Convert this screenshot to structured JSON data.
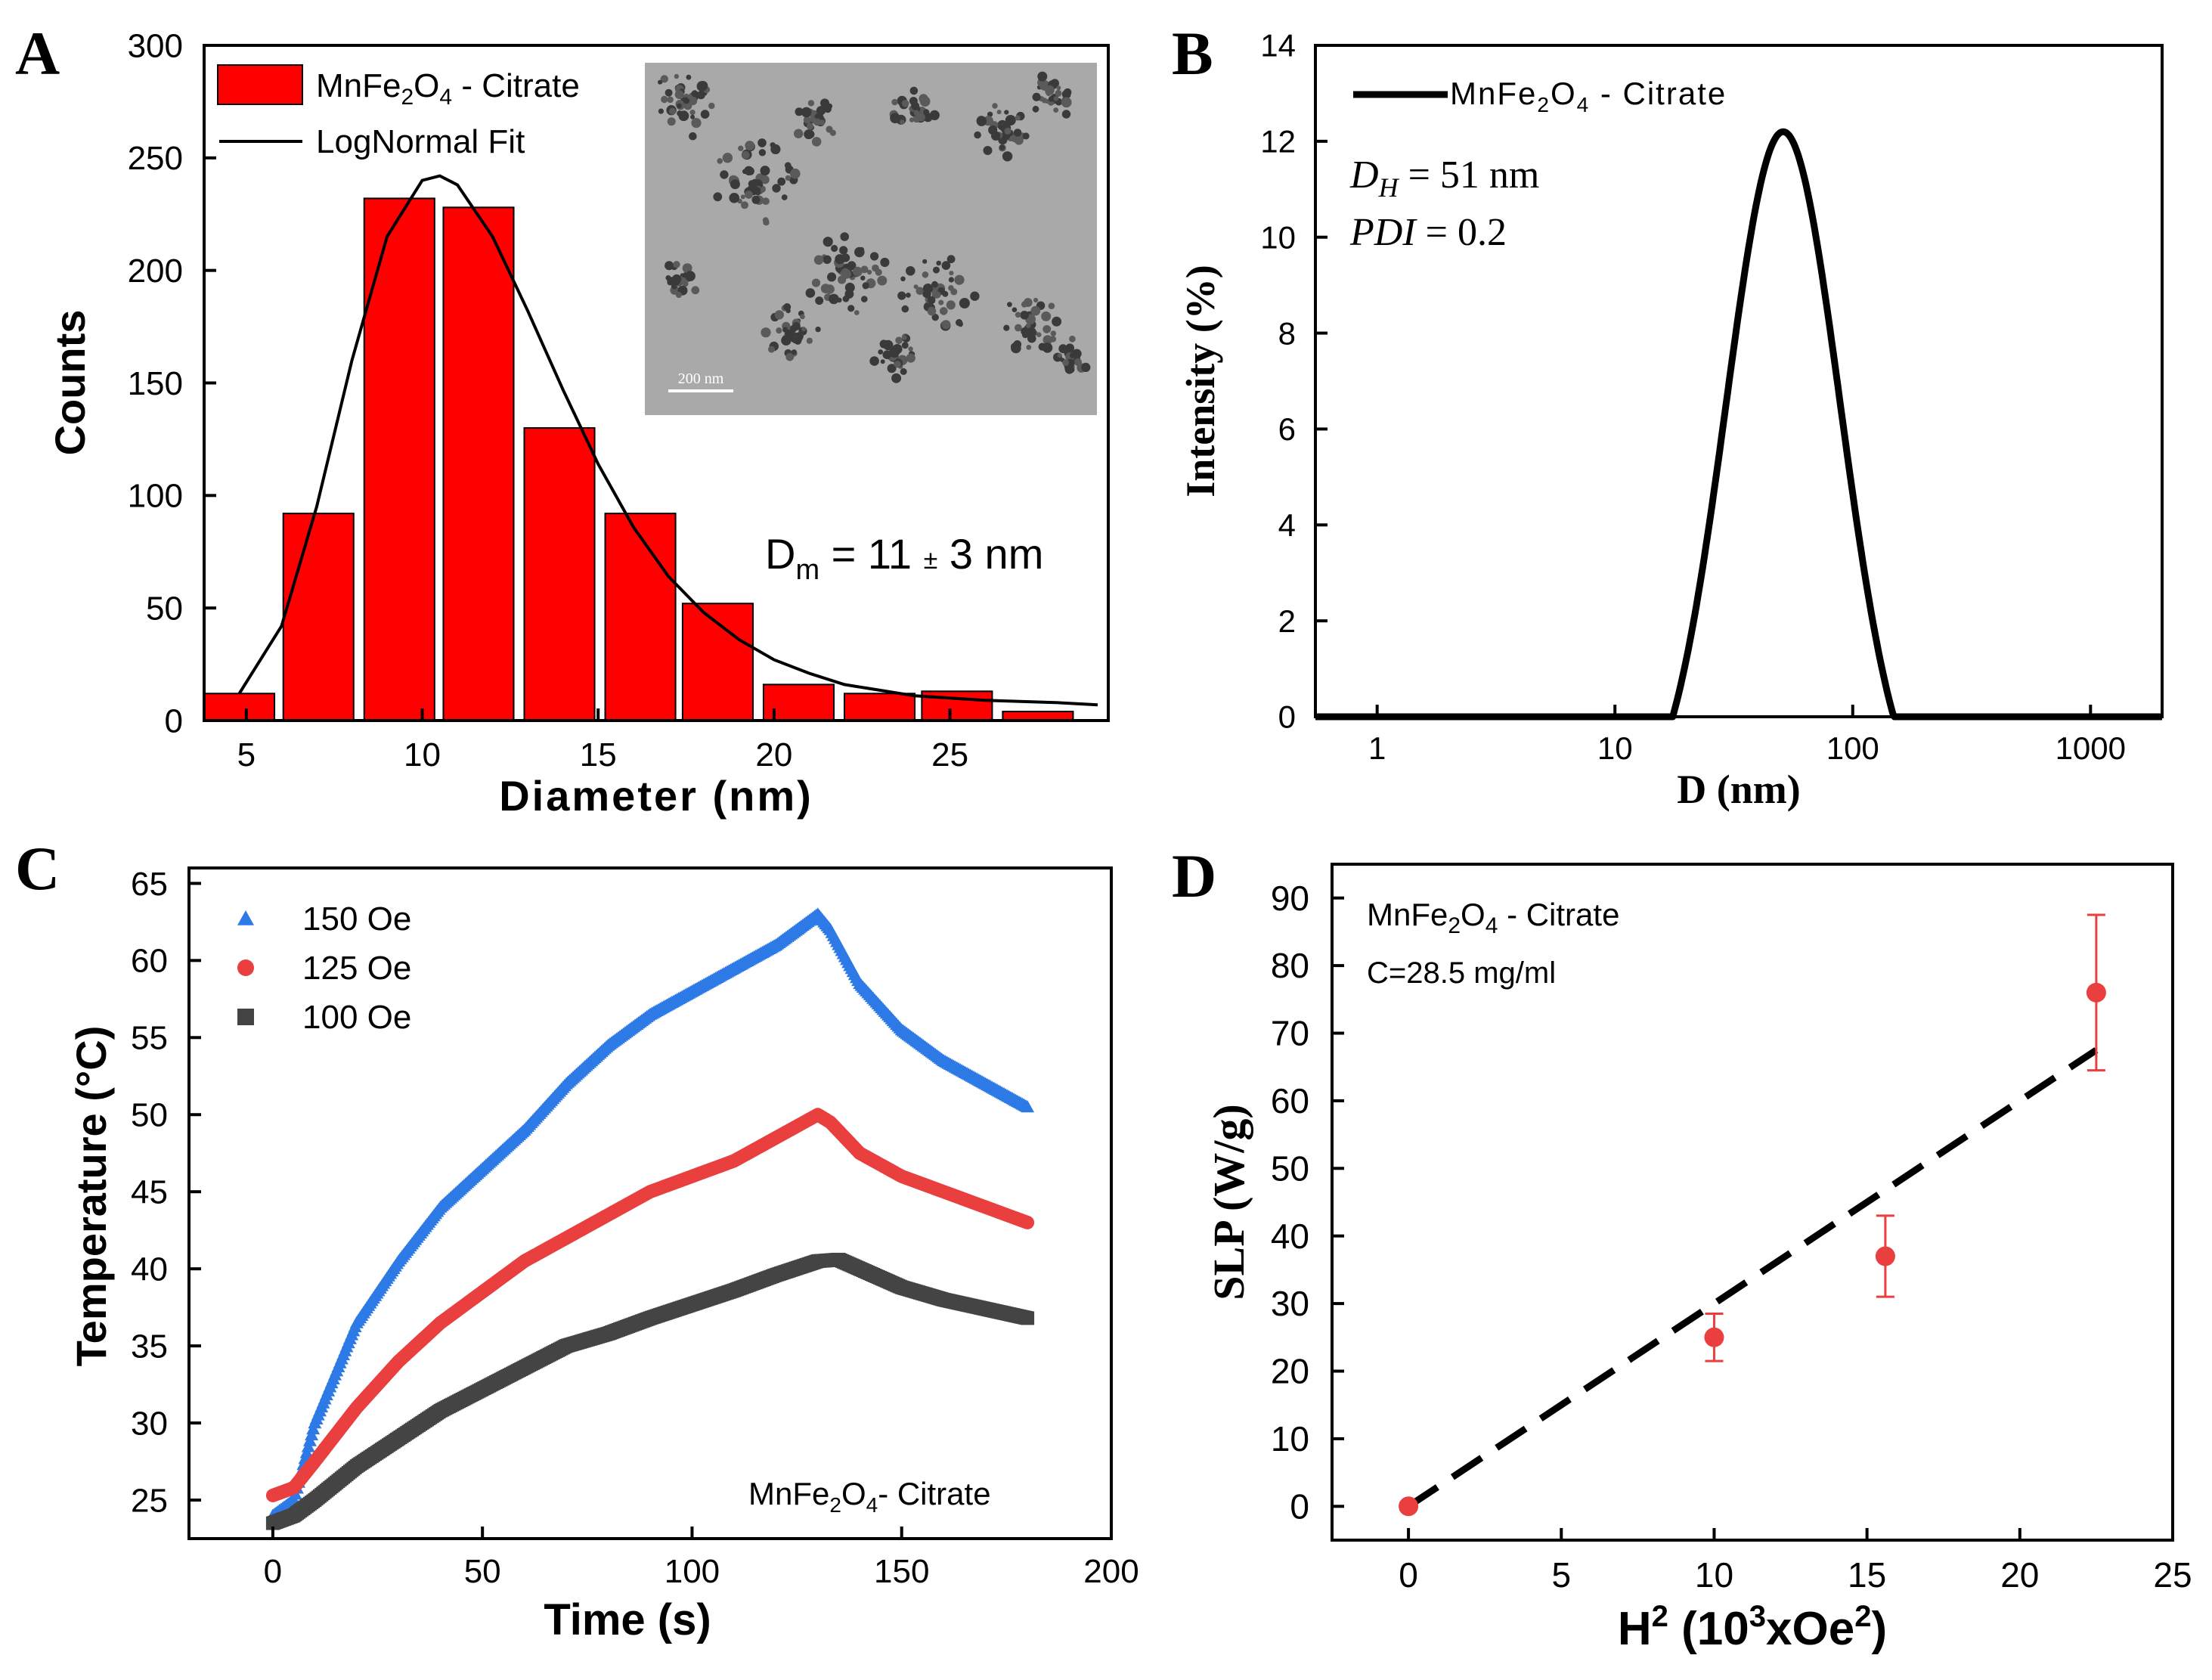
{
  "colors": {
    "bar": "#ff0000",
    "fit": "#000000",
    "dls": "#000000",
    "series150": "#2d7ae6",
    "series125": "#ea3f3f",
    "series100": "#444444",
    "slp_points": "#ea3f3f",
    "slp_fit": "#000000"
  },
  "panels": {
    "A": {
      "letter": "A"
    },
    "B": {
      "letter": "B"
    },
    "C": {
      "letter": "C"
    },
    "D": {
      "letter": "D"
    }
  },
  "chart_data": [
    {
      "id": "A",
      "type": "bar",
      "xlabel": "Diameter (nm)",
      "ylabel": "Counts",
      "xlim": [
        3.8,
        29.5
      ],
      "ylim": [
        0,
        300
      ],
      "xticks": [
        5,
        10,
        15,
        20,
        25
      ],
      "yticks": [
        0,
        50,
        100,
        150,
        200,
        250,
        300
      ],
      "bar_width": 2.0,
      "bars": [
        {
          "x": 4.8,
          "count": 12
        },
        {
          "x": 7.05,
          "count": 92
        },
        {
          "x": 9.35,
          "count": 232
        },
        {
          "x": 11.6,
          "count": 228
        },
        {
          "x": 13.9,
          "count": 130
        },
        {
          "x": 16.2,
          "count": 92
        },
        {
          "x": 18.4,
          "count": 52
        },
        {
          "x": 20.7,
          "count": 16
        },
        {
          "x": 23.0,
          "count": 12
        },
        {
          "x": 25.2,
          "count": 13
        },
        {
          "x": 27.5,
          "count": 4
        }
      ],
      "fit": {
        "x": [
          4.8,
          6,
          7,
          8,
          9,
          10,
          10.5,
          11,
          12,
          13,
          14,
          15,
          16,
          17,
          18,
          19,
          20,
          21,
          22,
          24,
          26,
          28,
          29.2
        ],
        "y": [
          12,
          42,
          95,
          160,
          215,
          240,
          242,
          238,
          215,
          182,
          147,
          114,
          86,
          64,
          48,
          36,
          27,
          21,
          16,
          11,
          9,
          8,
          7
        ]
      },
      "legend": [
        {
          "label": "MnFe",
          "sub1": "2",
          "mid": "O",
          "sub2": "4",
          "tail": " - Citrate",
          "kind": "bar"
        },
        {
          "label": "LogNormal Fit",
          "kind": "line"
        }
      ],
      "annotation": {
        "main": "D",
        "sub": "m",
        "rest": " = 11 ",
        "pm": "±",
        "tail": " 3 nm"
      },
      "inset": {
        "scalebar": "200 nm"
      }
    },
    {
      "id": "B",
      "type": "line",
      "xscale": "log",
      "xlabel": "D (nm)",
      "ylabel": "Intensity (%)",
      "xlim": [
        0.55,
        2000
      ],
      "ylim": [
        0,
        14
      ],
      "xticks": [
        1,
        10,
        100,
        1000
      ],
      "xtick_labels": [
        "1",
        "10",
        "100",
        "1000"
      ],
      "yticks": [
        0,
        2,
        4,
        6,
        8,
        10,
        12,
        14
      ],
      "series": [
        {
          "name": "MnFe2O4 - Citrate",
          "peak_center": 51,
          "peak_height": 12.2,
          "log_sigma": 0.24,
          "start": 17.5,
          "end": 200
        }
      ],
      "legend": [
        {
          "label": "MnFe",
          "sub1": "2",
          "mid": "O",
          "sub2": "4",
          "tail": " - Citrate"
        }
      ],
      "annotations": {
        "dh_main": "D",
        "dh_sub": "H",
        "dh_rest": " = 51 nm",
        "pdi": "PDI",
        "pdi_rest": " = 0.2"
      }
    },
    {
      "id": "C",
      "type": "scatter",
      "xlabel": "Time (s)",
      "ylabel": "Temperature (°C)",
      "xlim": [
        -20,
        200
      ],
      "ylim": [
        22.5,
        66
      ],
      "xticks": [
        0,
        50,
        100,
        150,
        200
      ],
      "yticks": [
        25,
        30,
        35,
        40,
        45,
        50,
        55,
        60,
        65
      ],
      "series": [
        {
          "name": "150 Oe",
          "marker": "triangle",
          "x": [
            0,
            5,
            10,
            20,
            30,
            40,
            50,
            60,
            70,
            80,
            90,
            100,
            110,
            120,
            130,
            133,
            140,
            150,
            160,
            170,
            180
          ],
          "y": [
            24,
            25,
            30,
            36.5,
            40.5,
            44,
            46.5,
            49,
            52,
            54.5,
            56.5,
            58,
            59.5,
            61,
            63,
            62,
            58.5,
            55.5,
            53.5,
            52,
            50.5
          ]
        },
        {
          "name": "125 Oe",
          "marker": "circle",
          "x": [
            0,
            5,
            10,
            20,
            30,
            40,
            50,
            60,
            70,
            80,
            90,
            100,
            110,
            120,
            130,
            133,
            140,
            150,
            160,
            170,
            180
          ],
          "y": [
            25.3,
            25.8,
            27.5,
            31,
            34,
            36.5,
            38.5,
            40.5,
            42,
            43.5,
            45,
            46,
            47,
            48.5,
            50,
            49.5,
            47.5,
            46,
            45,
            44,
            43
          ]
        },
        {
          "name": "100 Oe",
          "marker": "square",
          "x": [
            0,
            5,
            10,
            20,
            30,
            40,
            50,
            60,
            70,
            80,
            90,
            100,
            110,
            120,
            130,
            135,
            140,
            150,
            160,
            170,
            180
          ],
          "y": [
            23.5,
            24,
            25,
            27.2,
            29,
            30.8,
            32.2,
            33.6,
            35,
            35.8,
            36.8,
            37.7,
            38.6,
            39.6,
            40.5,
            40.6,
            40,
            38.8,
            38,
            37.4,
            36.8
          ]
        }
      ],
      "annotation": {
        "main": "MnFe",
        "sub1": "2",
        "mid": "O",
        "sub2": "4",
        "tail": "- Citrate"
      }
    },
    {
      "id": "D",
      "type": "scatter",
      "xlabel": {
        "main": "H",
        "sup1": "2",
        "mid": " (10",
        "sup2": "3",
        "mid2": "xOe",
        "sup3": "2",
        "tail": ")"
      },
      "ylabel": "SLP (W/g)",
      "xlim": [
        -2.5,
        25
      ],
      "ylim": [
        -5,
        95
      ],
      "xticks": [
        0,
        5,
        10,
        15,
        20,
        25
      ],
      "yticks": [
        0,
        10,
        20,
        30,
        40,
        50,
        60,
        70,
        80,
        90
      ],
      "points": [
        {
          "x": 0,
          "y": 0,
          "err": 0.5
        },
        {
          "x": 10,
          "y": 25,
          "err": 3.5
        },
        {
          "x": 15.6,
          "y": 37,
          "err": 6
        },
        {
          "x": 22.5,
          "y": 76,
          "err": 11.5
        }
      ],
      "fit": {
        "slope": 3.0,
        "x_start": 0,
        "x_end": 22.5
      },
      "annotations": {
        "line1_main": "MnFe",
        "line1_sub1": "2",
        "line1_mid": "O",
        "line1_sub2": "4",
        "line1_tail": " - Citrate",
        "line2": "C=28.5 mg/ml"
      }
    }
  ]
}
